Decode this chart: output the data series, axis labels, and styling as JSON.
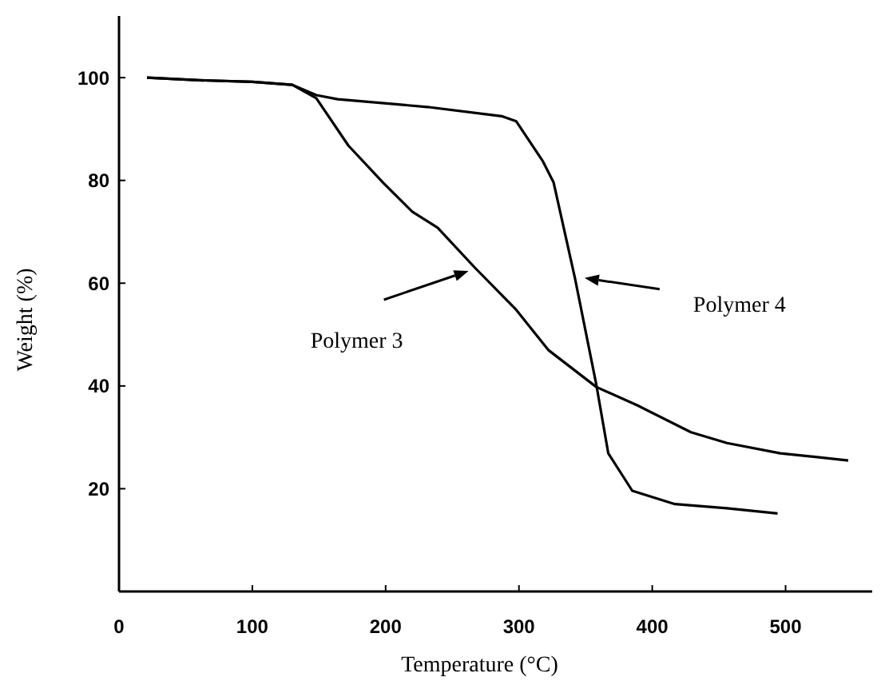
{
  "chart_data": {
    "type": "line",
    "xlabel": "Temperature (°C)",
    "ylabel": "Weight (%)",
    "xlim": [
      0,
      565
    ],
    "ylim": [
      0,
      112
    ],
    "xticks": [
      0,
      100,
      200,
      300,
      400,
      500
    ],
    "yticks": [
      20,
      40,
      60,
      80,
      100
    ],
    "grid": false,
    "line_style": "solid",
    "series": [
      {
        "color": "#000000",
        "x": [
          21,
          60,
          100,
          130,
          148,
          172,
          198,
          220,
          239,
          267,
          298,
          322,
          358,
          389,
          429,
          456,
          496,
          547
        ],
        "values": [
          100,
          99.5,
          99.2,
          98.6,
          96,
          86.8,
          79.6,
          73.9,
          70.8,
          63,
          54.8,
          47,
          39.8,
          36.2,
          31,
          28.9,
          26.9,
          25.5
        ]
      },
      {
        "color": "#000000",
        "x": [
          21,
          60,
          100,
          130,
          148,
          164,
          231,
          287,
          298,
          318,
          326,
          342,
          358,
          367,
          385,
          417,
          456,
          494
        ],
        "values": [
          100,
          99.5,
          99.2,
          98.6,
          96.6,
          95.8,
          94.3,
          92.5,
          91.5,
          83.7,
          79.6,
          61,
          40.3,
          26.9,
          19.6,
          17,
          16.2,
          15.2
        ]
      }
    ],
    "annotations": [
      "Polymer 3",
      "Polymer 4"
    ]
  }
}
